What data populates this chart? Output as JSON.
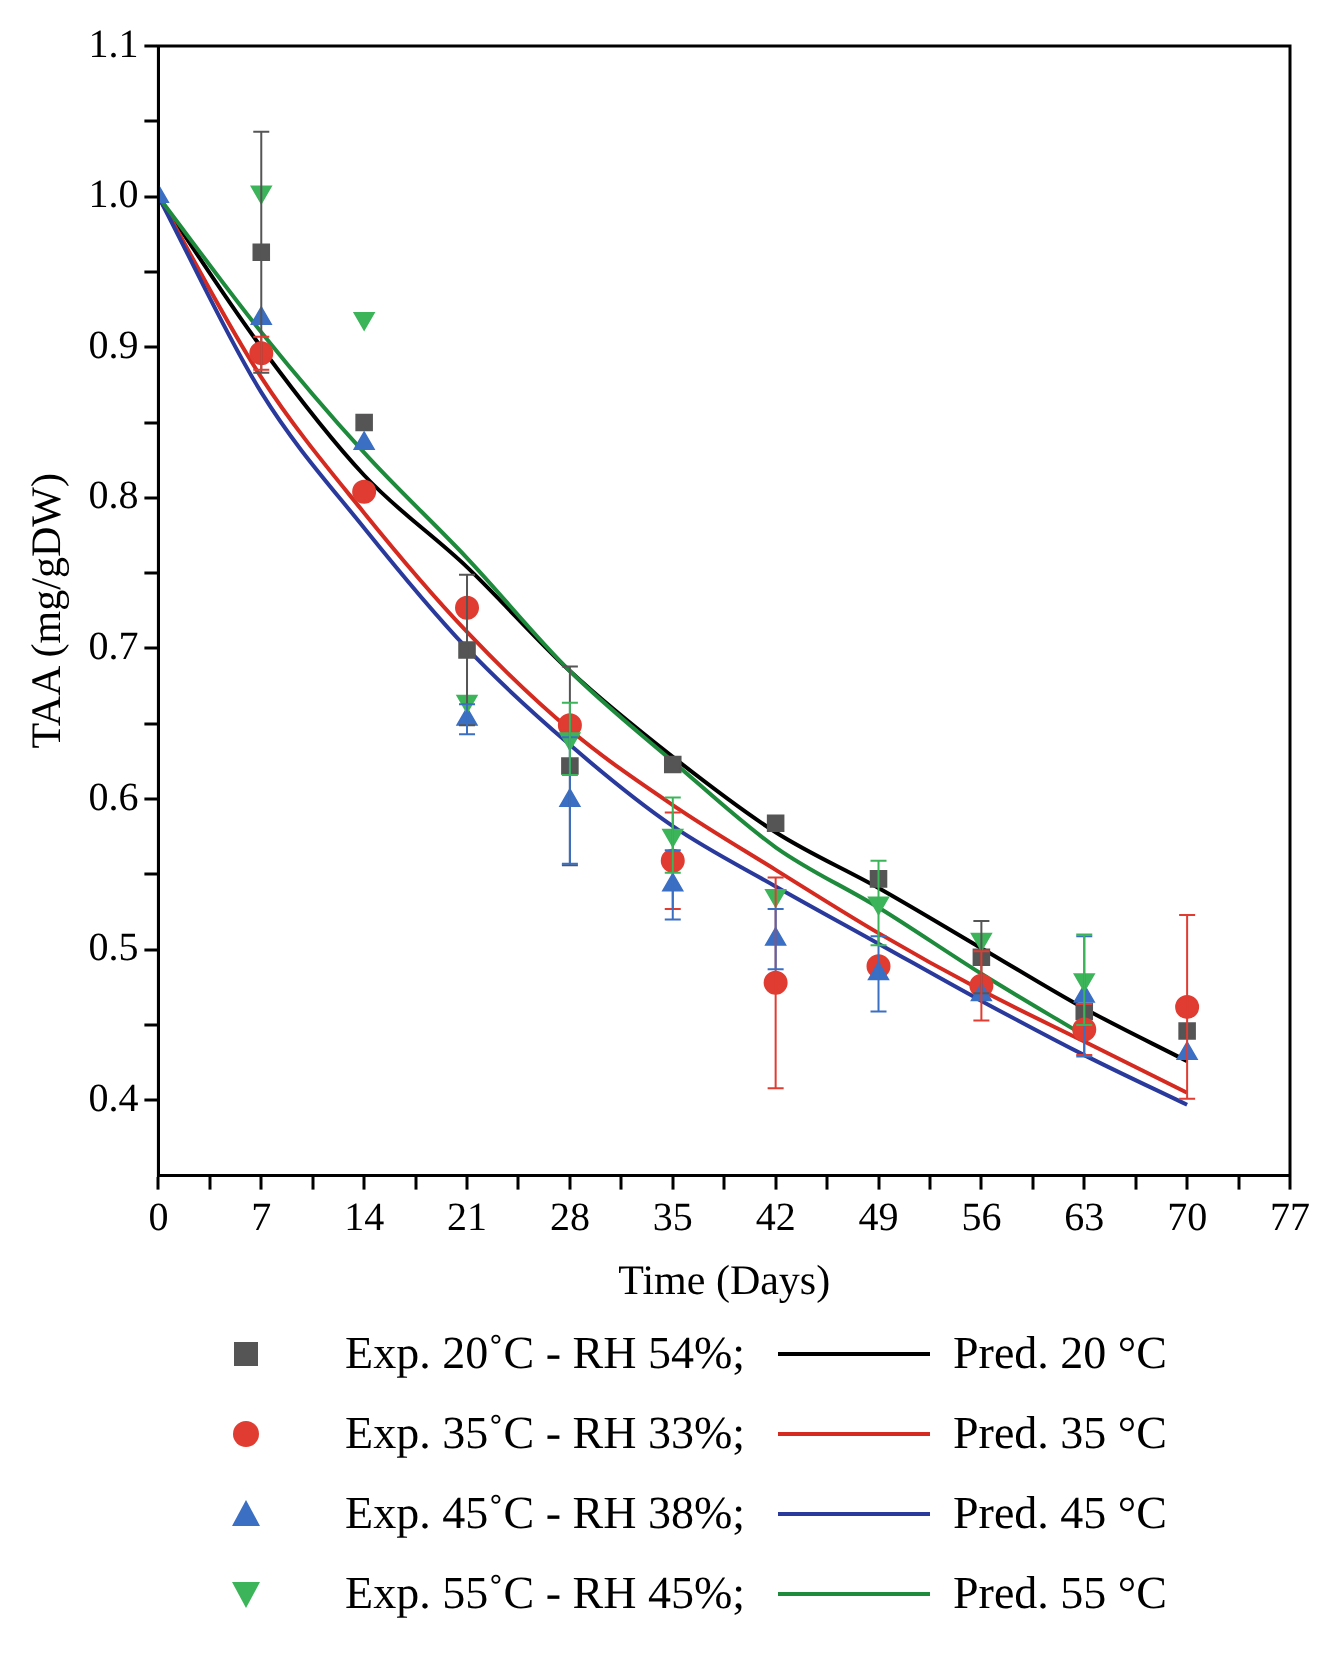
{
  "chart_data": {
    "type": "scatter",
    "xlabel": "Time (Days)",
    "ylabel": "TAA (mg/gDW)",
    "x": [
      0,
      7,
      14,
      21,
      28,
      35,
      42,
      49,
      56,
      63,
      70
    ],
    "xlim": [
      0,
      77
    ],
    "xticks": [
      0,
      {
        "value": 3.5,
        "label": null
      },
      7,
      {
        "value": 10.5,
        "label": null
      },
      14,
      {
        "value": 17.5,
        "label": null
      },
      21,
      {
        "value": 24.5,
        "label": null
      },
      28,
      {
        "value": 31.5,
        "label": null
      },
      35,
      {
        "value": 38.5,
        "label": null
      },
      42,
      {
        "value": 45.5,
        "label": null
      },
      49,
      {
        "value": 52.5,
        "label": null
      },
      56,
      {
        "value": 59.5,
        "label": null
      },
      63,
      {
        "value": 66.5,
        "label": null
      },
      70,
      {
        "value": 73.5,
        "label": null
      },
      77
    ],
    "ylim": [
      0.35,
      1.1
    ],
    "yticks": [
      0.4,
      {
        "value": 0.45,
        "label": null
      },
      0.5,
      {
        "value": 0.55,
        "label": null
      },
      0.6,
      {
        "value": 0.65,
        "label": null
      },
      0.7,
      {
        "value": 0.75,
        "label": null
      },
      0.8,
      {
        "value": 0.85,
        "label": null
      },
      0.9,
      {
        "value": 0.95,
        "label": null
      },
      {
        "value": 1.0,
        "label": "1.0"
      },
      {
        "value": 1.05,
        "label": null
      },
      1.1
    ],
    "grid": false,
    "legend": "bottom",
    "line_style": "solid",
    "series": [
      {
        "name": "Exp. 20˚C - RH 54%;",
        "marker": "square",
        "color": "#555555",
        "values": [
          null,
          0.963,
          0.85,
          0.699,
          0.622,
          0.623,
          0.584,
          0.547,
          0.495,
          0.459,
          0.446
        ],
        "errors": [
          null,
          0.08,
          null,
          0.05,
          0.066,
          null,
          null,
          null,
          0.024,
          null,
          null
        ]
      },
      {
        "name": "Pred. 20 °C",
        "type": "line",
        "color": "#000000",
        "x": [
          0,
          7,
          14,
          21,
          28,
          35,
          42,
          49,
          56,
          63,
          70
        ],
        "values": [
          1.0,
          0.9,
          0.815,
          0.754,
          0.685,
          0.628,
          0.578,
          0.541,
          0.501,
          0.461,
          0.426
        ]
      },
      {
        "name": "Exp. 35˚C - RH 33%;",
        "marker": "circle",
        "color": "#e03c31",
        "values": [
          null,
          0.896,
          0.804,
          0.727,
          0.649,
          0.559,
          0.478,
          0.489,
          0.476,
          0.447,
          0.462
        ],
        "errors": [
          null,
          0.011,
          null,
          null,
          null,
          0.032,
          0.07,
          null,
          0.023,
          0.017,
          0.061
        ]
      },
      {
        "name": "Pred. 35 °C",
        "type": "line",
        "color": "#d42a20",
        "x": [
          0,
          7,
          14,
          21,
          28,
          35,
          42,
          49,
          56,
          63,
          70
        ],
        "values": [
          1.0,
          0.88,
          0.79,
          0.711,
          0.646,
          0.596,
          0.553,
          0.511,
          0.473,
          0.439,
          0.405
        ]
      },
      {
        "name": "Exp. 45˚C - RH 38%;",
        "marker": "triangle",
        "color": "#3a6fc4",
        "values": [
          1.0,
          0.919,
          0.836,
          0.653,
          0.599,
          0.543,
          0.507,
          0.484,
          0.47,
          0.469,
          0.431
        ],
        "errors": [
          null,
          null,
          null,
          0.01,
          0.042,
          0.023,
          0.02,
          0.025,
          null,
          0.04,
          null
        ]
      },
      {
        "name": "Pred. 45 °C",
        "type": "line",
        "color": "#2a3a9c",
        "x": [
          0,
          7,
          14,
          21,
          28,
          35,
          42,
          49,
          56,
          63,
          70
        ],
        "values": [
          1.0,
          0.87,
          0.78,
          0.7,
          0.636,
          0.582,
          0.542,
          0.504,
          0.466,
          0.43,
          0.397
        ]
      },
      {
        "name": "Exp. 55˚C - RH 45%;",
        "marker": "triangle-down",
        "color": "#3cb55a",
        "values": [
          null,
          1.003,
          0.919,
          0.665,
          0.64,
          0.576,
          0.536,
          0.531,
          0.507,
          0.48,
          null
        ],
        "errors": [
          null,
          null,
          null,
          null,
          0.024,
          0.025,
          null,
          0.028,
          null,
          0.03,
          null
        ]
      },
      {
        "name": "Pred. 55 °C",
        "type": "line",
        "color": "#1e8a3c",
        "x": [
          0,
          7,
          14,
          21,
          28,
          35,
          42,
          49,
          56,
          63
        ],
        "values": [
          1.0,
          0.91,
          0.83,
          0.76,
          0.685,
          0.625,
          0.568,
          0.528,
          0.484,
          0.443
        ]
      }
    ]
  }
}
